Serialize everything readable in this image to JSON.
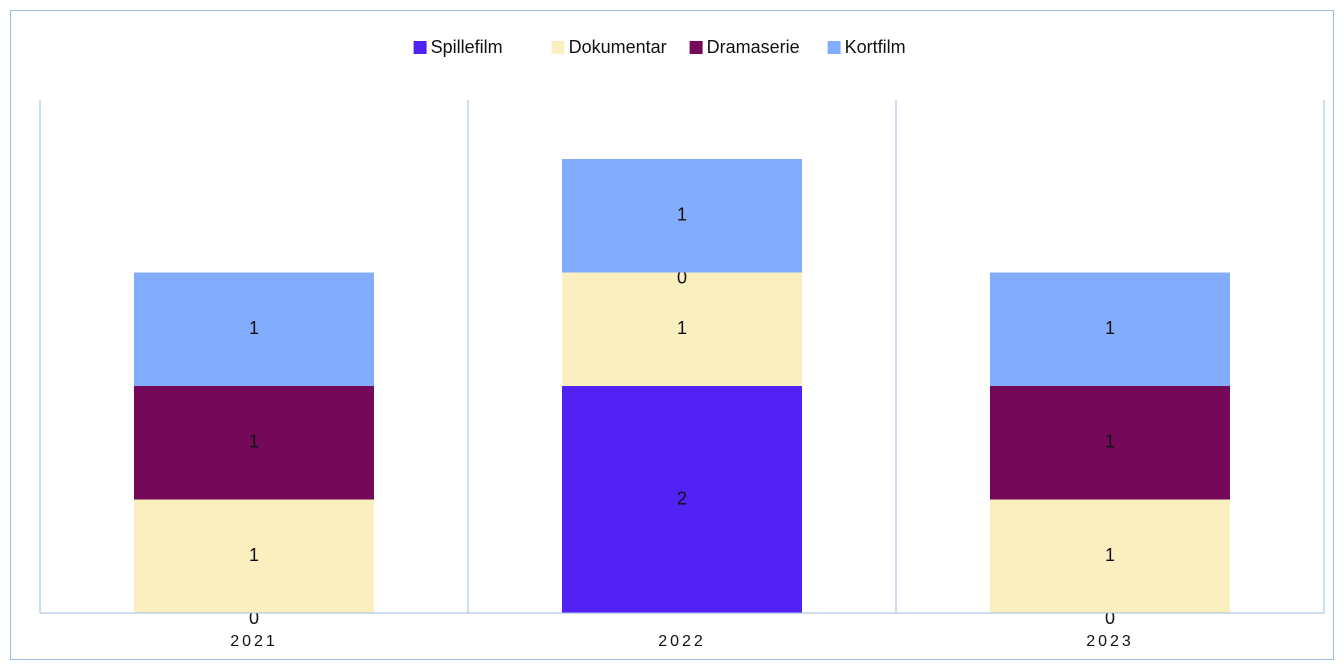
{
  "chart_data": {
    "type": "stacked-bar",
    "categories": [
      "2021",
      "2022",
      "2023"
    ],
    "series": [
      {
        "name": "Spillefilm",
        "color": "#5222f5",
        "values": [
          0,
          2,
          0
        ]
      },
      {
        "name": "Dokumentar",
        "color": "#fbeebf",
        "values": [
          1,
          1,
          1
        ]
      },
      {
        "name": "Dramaserie",
        "color": "#730958",
        "values": [
          1,
          0,
          1
        ]
      },
      {
        "name": "Kortfilm",
        "color": "#82acfc",
        "values": [
          1,
          1,
          1
        ]
      }
    ],
    "ylim": [
      0,
      4.52
    ],
    "legend": "top"
  }
}
